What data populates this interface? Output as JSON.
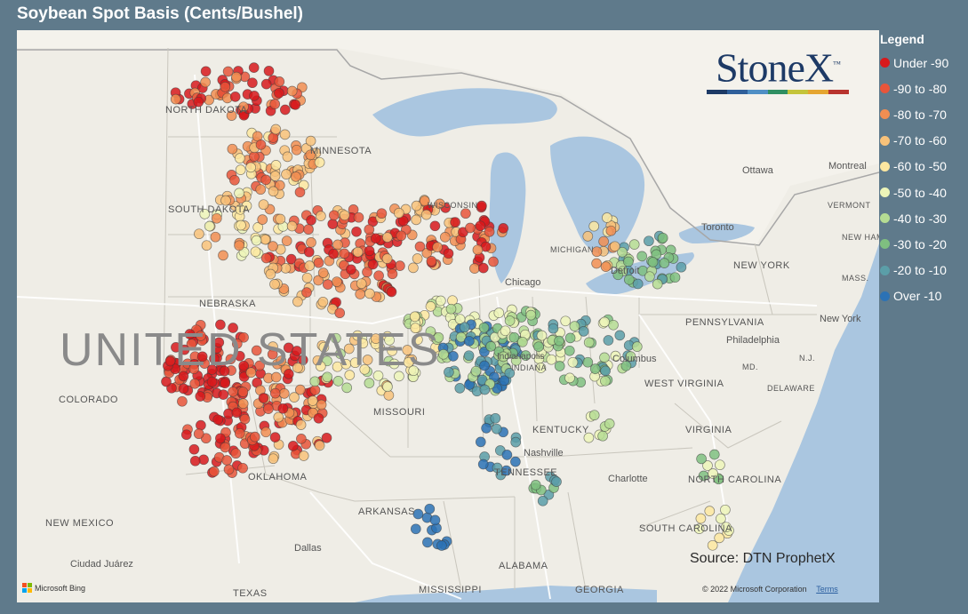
{
  "title": "Soybean Spot Basis (Cents/Bushel)",
  "legend": {
    "title": "Legend",
    "items": [
      {
        "label": "Under -90",
        "color": "#d7191c"
      },
      {
        "label": "-90 to -80",
        "color": "#e8553a"
      },
      {
        "label": "-80 to -70",
        "color": "#f18e52"
      },
      {
        "label": "-70 to -60",
        "color": "#f8c27a"
      },
      {
        "label": "-60 to -50",
        "color": "#fde7a0"
      },
      {
        "label": "-50 to -40",
        "color": "#edf5b8"
      },
      {
        "label": "-40 to -30",
        "color": "#b5dc93"
      },
      {
        "label": "-30 to -20",
        "color": "#7fbf80"
      },
      {
        "label": "-20 to -10",
        "color": "#5b9ea8"
      },
      {
        "label": "Over -10",
        "color": "#2c72b5"
      }
    ]
  },
  "logo": {
    "text": "StoneX",
    "tm": "™",
    "bar_colors": [
      "#1d3a66",
      "#2f5f9a",
      "#4f8fc5",
      "#2f8f62",
      "#c4c43a",
      "#e5a530",
      "#b8342e"
    ]
  },
  "source": "Source: DTN ProphetX",
  "attribution": {
    "bing": "Microsoft Bing",
    "copyright": "© 2022 Microsoft Corporation",
    "terms": "Terms"
  },
  "map_labels": {
    "north_dakota": "NORTH DAKOTA",
    "minnesota": "MINNESOTA",
    "south_dakota": "SOUTH DAKOTA",
    "nebraska": "NEBRASKA",
    "united_states": "UNITED STATES",
    "colorado": "COLORADO",
    "missouri": "MISSOURI",
    "kentucky": "KENTUCKY",
    "tennessee": "TENNESSEE",
    "oklahoma": "OKLAHOMA",
    "arkansas": "ARKANSAS",
    "new_mexico": "NEW MEXICO",
    "texas": "TEXAS",
    "mississippi": "MISSISSIPPI",
    "alabama": "ALABAMA",
    "georgia": "GEORGIA",
    "south_carolina": "SOUTH CAROLINA",
    "north_carolina": "NORTH CAROLINA",
    "virginia": "VIRGINIA",
    "west_virginia": "WEST VIRGINIA",
    "pennsylvania": "PENNSYLVANIA",
    "new_york_state": "NEW YORK",
    "vermont": "VERMONT",
    "new_hampshire": "NEW HAMPSH",
    "mass": "MASS.",
    "nj": "N.J.",
    "md": "MD.",
    "delaware": "DELAWARE",
    "michigan": "MICHIGAN",
    "wisconsin": "WISCONSIN",
    "indiana": "INDIANA",
    "chicago": "Chicago",
    "indianapolis": "Indianapolis",
    "columbus": "Columbus",
    "nashville": "Nashville",
    "charlotte": "Charlotte",
    "dallas": "Dallas",
    "ciudad_juarez": "Ciudad Juárez",
    "philadelphia": "Philadelphia",
    "new_york_city": "New York",
    "ottawa": "Ottawa",
    "montreal": "Montreal",
    "toronto": "Toronto",
    "detroit": "Detroit"
  }
}
